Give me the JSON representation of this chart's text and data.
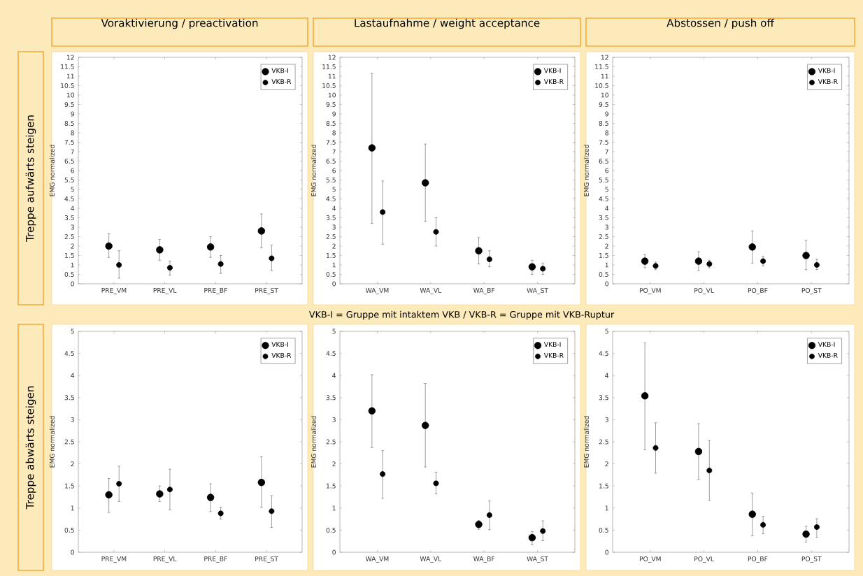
{
  "chart_data": [
    {
      "type": "scatter",
      "title": "Voraktivierung / preactivation",
      "ylabel": "EMG normalized",
      "annotations": [
        "Treppe aufwärts steigen"
      ],
      "categories": [
        "PRE_VM",
        "PRE_VL",
        "PRE_BF",
        "PRE_ST"
      ],
      "series": [
        {
          "name": "VKB-I",
          "color": "#000000",
          "values": [
            2.0,
            1.8,
            1.95,
            2.8
          ],
          "errors": [
            [
              1.4,
              2.65
            ],
            [
              1.25,
              2.35
            ],
            [
              1.4,
              2.5
            ],
            [
              1.9,
              3.7
            ]
          ]
        },
        {
          "name": "VKB-R",
          "color": "#000000",
          "values": [
            1.0,
            0.85,
            1.05,
            1.35
          ],
          "errors": [
            [
              0.3,
              1.75
            ],
            [
              0.45,
              1.2
            ],
            [
              0.55,
              1.5
            ],
            [
              0.7,
              2.05
            ]
          ]
        }
      ],
      "ylim": [
        0,
        12
      ],
      "yticks": [
        0,
        0.5,
        1,
        1.5,
        2,
        2.5,
        3,
        3.5,
        4,
        4.5,
        5,
        5.5,
        6,
        6.5,
        7,
        7.5,
        8,
        8.5,
        9,
        9.5,
        10,
        10.5,
        11,
        11.5,
        12
      ],
      "legend": "top right",
      "marker": "circle"
    },
    {
      "type": "scatter",
      "title": "Lastaufnahme / weight acceptance",
      "ylabel": "EMG normalized",
      "annotations": [
        "VKB-I = Gruppe mit intaktem VKB   /   VKB-R = Gruppe mit VKB-Ruptur"
      ],
      "categories": [
        "WA_VM",
        "WA_VL",
        "WA_BF",
        "WA_ST"
      ],
      "series": [
        {
          "name": "VKB-I",
          "color": "#000000",
          "values": [
            7.2,
            5.35,
            1.75,
            0.9
          ],
          "errors": [
            [
              3.2,
              11.15
            ],
            [
              3.3,
              7.4
            ],
            [
              1.05,
              2.45
            ],
            [
              0.5,
              1.25
            ]
          ]
        },
        {
          "name": "VKB-R",
          "color": "#000000",
          "values": [
            3.8,
            2.75,
            1.3,
            0.8
          ],
          "errors": [
            [
              2.1,
              5.45
            ],
            [
              2.0,
              3.5
            ],
            [
              0.9,
              1.75
            ],
            [
              0.5,
              1.1
            ]
          ]
        }
      ],
      "ylim": [
        0,
        12
      ],
      "yticks": [
        0,
        0.5,
        1,
        1.5,
        2,
        2.5,
        3,
        3.5,
        4,
        4.5,
        5,
        5.5,
        6,
        6.5,
        7,
        7.5,
        8,
        8.5,
        9,
        9.5,
        10,
        10.5,
        11,
        11.5,
        12
      ],
      "legend": "top right",
      "marker": "circle"
    },
    {
      "type": "scatter",
      "title": "Abstossen / push off",
      "ylabel": "EMG normalized",
      "categories": [
        "PO_VM",
        "PO_VL",
        "PO_BF",
        "PO_ST"
      ],
      "series": [
        {
          "name": "VKB-I",
          "color": "#000000",
          "values": [
            1.2,
            1.2,
            1.95,
            1.5
          ],
          "errors": [
            [
              0.85,
              1.55
            ],
            [
              0.7,
              1.7
            ],
            [
              1.1,
              2.8
            ],
            [
              0.75,
              2.3
            ]
          ]
        },
        {
          "name": "VKB-R",
          "color": "#000000",
          "values": [
            0.95,
            1.05,
            1.2,
            1.0
          ],
          "errors": [
            [
              0.75,
              1.15
            ],
            [
              0.85,
              1.25
            ],
            [
              0.95,
              1.45
            ],
            [
              0.75,
              1.3
            ]
          ]
        }
      ],
      "ylim": [
        0,
        12
      ],
      "yticks": [
        0,
        0.5,
        1,
        1.5,
        2,
        2.5,
        3,
        3.5,
        4,
        4.5,
        5,
        5.5,
        6,
        6.5,
        7,
        7.5,
        8,
        8.5,
        9,
        9.5,
        10,
        10.5,
        11,
        11.5,
        12
      ],
      "legend": "top right",
      "marker": "circle"
    },
    {
      "type": "scatter",
      "ylabel": "EMG normalized",
      "annotations": [
        "Treppe abwärts steigen"
      ],
      "categories": [
        "PRE_VM",
        "PRE_VL",
        "PRE_BF",
        "PRE_ST"
      ],
      "series": [
        {
          "name": "VKB-I",
          "color": "#000000",
          "values": [
            1.3,
            1.32,
            1.24,
            1.58
          ],
          "errors": [
            [
              0.9,
              1.67
            ],
            [
              1.15,
              1.5
            ],
            [
              0.92,
              1.55
            ],
            [
              1.02,
              2.16
            ]
          ]
        },
        {
          "name": "VKB-R",
          "color": "#000000",
          "values": [
            1.55,
            1.42,
            0.88,
            0.93
          ],
          "errors": [
            [
              1.15,
              1.95
            ],
            [
              0.96,
              1.88
            ],
            [
              0.75,
              1.02
            ],
            [
              0.56,
              1.28
            ]
          ]
        }
      ],
      "ylim": [
        0,
        5
      ],
      "yticks": [
        0,
        0.5,
        1,
        1.5,
        2,
        2.5,
        3,
        3.5,
        4,
        4.5,
        5
      ],
      "legend": "top right",
      "marker": "circle"
    },
    {
      "type": "scatter",
      "ylabel": "EMG normalized",
      "categories": [
        "WA_VM",
        "WA_VL",
        "WA_BF",
        "WA_ST"
      ],
      "series": [
        {
          "name": "VKB-I",
          "color": "#000000",
          "values": [
            3.2,
            2.87,
            0.63,
            0.33
          ],
          "errors": [
            [
              2.37,
              4.02
            ],
            [
              1.93,
              3.82
            ],
            [
              0.52,
              0.72
            ],
            [
              0.17,
              0.47
            ]
          ]
        },
        {
          "name": "VKB-R",
          "color": "#000000",
          "values": [
            1.77,
            1.56,
            0.84,
            0.48
          ],
          "errors": [
            [
              1.22,
              2.3
            ],
            [
              1.32,
              1.81
            ],
            [
              0.51,
              1.16
            ],
            [
              0.26,
              0.71
            ]
          ]
        }
      ],
      "ylim": [
        0,
        5
      ],
      "yticks": [
        0,
        0.5,
        1,
        1.5,
        2,
        2.5,
        3,
        3.5,
        4,
        4.5,
        5
      ],
      "legend": "top right",
      "marker": "circle"
    },
    {
      "type": "scatter",
      "ylabel": "EMG normalized",
      "categories": [
        "PO_VM",
        "PO_VL",
        "PO_BF",
        "PO_ST"
      ],
      "series": [
        {
          "name": "VKB-I",
          "color": "#000000",
          "values": [
            3.54,
            2.28,
            0.86,
            0.41
          ],
          "errors": [
            [
              2.32,
              4.74
            ],
            [
              1.65,
              2.91
            ],
            [
              0.37,
              1.34
            ],
            [
              0.23,
              0.59
            ]
          ]
        },
        {
          "name": "VKB-R",
          "color": "#000000",
          "values": [
            2.36,
            1.85,
            0.62,
            0.57
          ],
          "errors": [
            [
              1.79,
              2.93
            ],
            [
              1.17,
              2.53
            ],
            [
              0.42,
              0.81
            ],
            [
              0.34,
              0.76
            ]
          ]
        }
      ],
      "ylim": [
        0,
        5
      ],
      "yticks": [
        0,
        0.5,
        1,
        1.5,
        2,
        2.5,
        3,
        3.5,
        4,
        4.5,
        5
      ],
      "legend": "top right",
      "marker": "circle"
    }
  ]
}
